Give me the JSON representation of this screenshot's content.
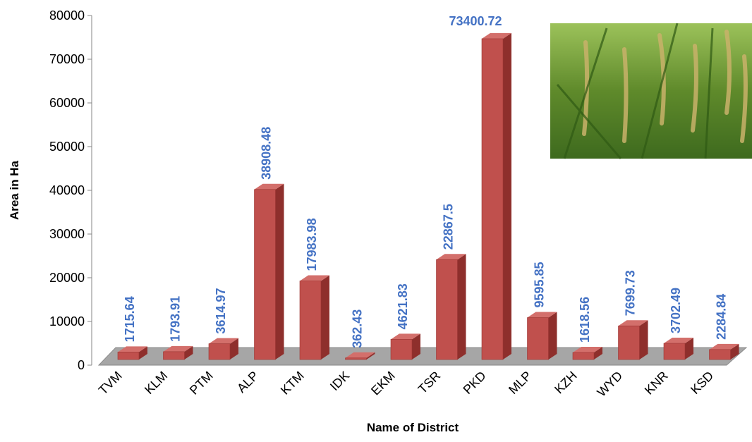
{
  "chart_data": {
    "type": "bar",
    "x_label": "Name of District",
    "y_label": "Area in Ha",
    "categories": [
      "TVM",
      "KLM",
      "PTM",
      "ALP",
      "KTM",
      "IDK",
      "EKM",
      "TSR",
      "PKD",
      "MLP",
      "KZH",
      "WYD",
      "KNR",
      "KSD"
    ],
    "values": [
      1715.64,
      1793.91,
      3614.97,
      38908.48,
      17983.98,
      362.43,
      4621.83,
      22867.5,
      73400.72,
      9595.85,
      1618.56,
      7699.73,
      3702.49,
      2284.84
    ],
    "color": "#c0504d",
    "ylim": [
      0,
      80000
    ],
    "yticks": [
      0,
      10000,
      20000,
      30000,
      40000,
      50000,
      60000,
      70000,
      80000
    ]
  }
}
